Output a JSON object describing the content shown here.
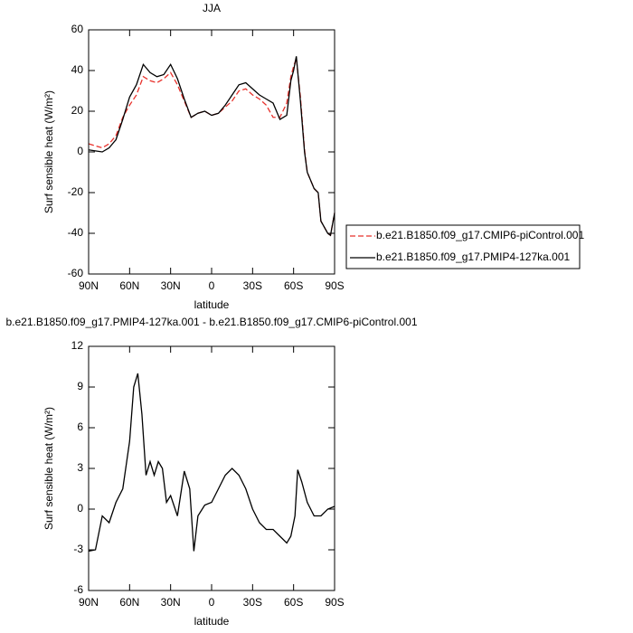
{
  "chart_data": [
    {
      "type": "line",
      "title": "JJA",
      "x_label": "latitude",
      "y_label": "Surf sensible heat (W/m²)",
      "x": [
        90,
        85,
        80,
        75,
        70,
        65,
        60,
        55,
        50,
        45,
        40,
        35,
        30,
        25,
        20,
        15,
        10,
        5,
        0,
        -5,
        -10,
        -15,
        -20,
        -25,
        -30,
        -35,
        -40,
        -45,
        -50,
        -55,
        -58,
        -60,
        -62,
        -65,
        -68,
        -70,
        -75,
        -78,
        -80,
        -85,
        -87,
        -90
      ],
      "series": [
        {
          "name": "b.e21.B1850.f09_g17.CMIP6-piControl.001",
          "color": "#e8312b",
          "dashed": true,
          "values": [
            4,
            3,
            2,
            4,
            8,
            17,
            23,
            28,
            37,
            35,
            34,
            36,
            39,
            33,
            25,
            17,
            19,
            20,
            18,
            19,
            22,
            25,
            30,
            31,
            28,
            26,
            23,
            17,
            17,
            24,
            37,
            42,
            46,
            27,
            1,
            -10,
            -18,
            -20,
            -34,
            -40,
            -41,
            -30
          ]
        },
        {
          "name": "b.e21.B1850.f09_g17.PMIP4-127ka.001",
          "color": "#000000",
          "dashed": false,
          "values": [
            1,
            0.5,
            0,
            2,
            6,
            16,
            27,
            33,
            43,
            39,
            37,
            38,
            43,
            36,
            26,
            17,
            19,
            20,
            18,
            19,
            23,
            28,
            33,
            34,
            31,
            28,
            26,
            24,
            16,
            18,
            35,
            40,
            47,
            25,
            0,
            -10,
            -18,
            -20,
            -34,
            -40,
            -41,
            -30
          ]
        }
      ],
      "xlim": [
        90,
        -90
      ],
      "xticks": [
        {
          "value": 90,
          "label": "90N"
        },
        {
          "value": 60,
          "label": "60N"
        },
        {
          "value": 30,
          "label": "30N"
        },
        0,
        {
          "value": -30,
          "label": "30S"
        },
        {
          "value": -60,
          "label": "60S"
        },
        {
          "value": -90,
          "label": "90S"
        }
      ],
      "ylim": [
        -60,
        60
      ],
      "yticks": [
        -60,
        -40,
        -20,
        0,
        20,
        40,
        60
      ],
      "legend": "right"
    },
    {
      "type": "line",
      "title": "b.e21.B1850.f09_g17.PMIP4-127ka.001 - b.e21.B1850.f09_g17.CMIP6-piControl.001",
      "x_label": "latitude",
      "y_label": "Surf sensible heat (W/m²)",
      "x": [
        90,
        85,
        80,
        75,
        70,
        65,
        60,
        57,
        54,
        51,
        48,
        45,
        42,
        39,
        36,
        33,
        30,
        25,
        20,
        16,
        13,
        10,
        5,
        0,
        -5,
        -10,
        -15,
        -20,
        -25,
        -30,
        -35,
        -40,
        -45,
        -50,
        -55,
        -58,
        -61,
        -63,
        -66,
        -70,
        -75,
        -80,
        -85,
        -90
      ],
      "series": [
        {
          "color": "#000000",
          "dashed": false,
          "values": [
            -3.1,
            -3,
            -0.5,
            -1,
            0.5,
            1.5,
            5,
            9,
            10,
            7,
            2.5,
            3.5,
            2.5,
            3.5,
            3,
            0.5,
            1,
            -0.5,
            2.8,
            1.5,
            -3.1,
            -0.5,
            0.3,
            0.5,
            1.5,
            2.5,
            3,
            2.5,
            1.5,
            0,
            -1,
            -1.5,
            -1.5,
            -2,
            -2.5,
            -2,
            -0.5,
            2.9,
            2,
            0.5,
            -0.5,
            -0.5,
            0,
            0.2
          ]
        }
      ],
      "xlim": [
        90,
        -90
      ],
      "xticks": [
        {
          "value": 90,
          "label": "90N"
        },
        {
          "value": 60,
          "label": "60N"
        },
        {
          "value": 30,
          "label": "30N"
        },
        0,
        {
          "value": -30,
          "label": "30S"
        },
        {
          "value": -60,
          "label": "60S"
        },
        {
          "value": -90,
          "label": "90S"
        }
      ],
      "ylim": [
        -6,
        12
      ],
      "yticks": [
        -6,
        -3,
        0,
        3,
        6,
        9,
        12
      ]
    }
  ]
}
